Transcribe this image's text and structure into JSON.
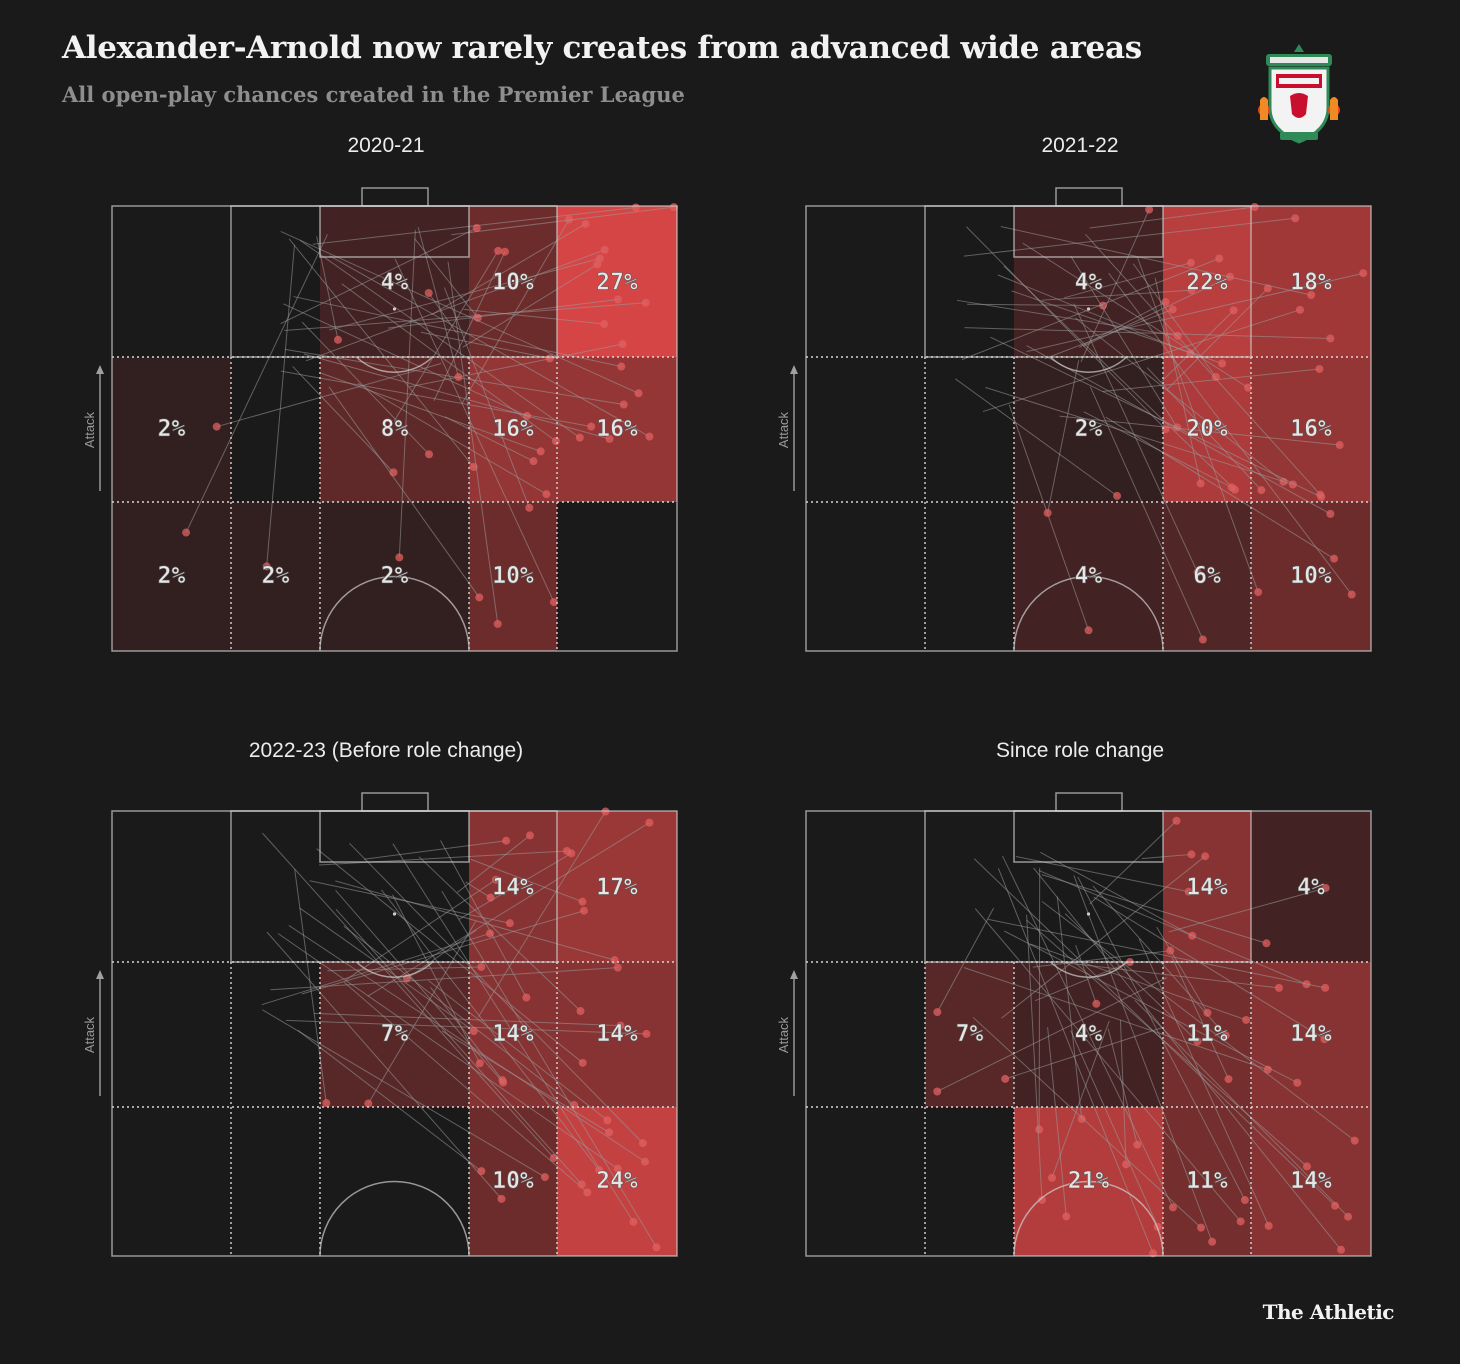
{
  "header": {
    "title": "Alexander-Arnold now rarely creates from advanced wide areas",
    "subtitle": "All open-play chances created in the Premier League"
  },
  "footer": {
    "brand": "The Athletic"
  },
  "logo": {
    "name": "liverpool-crest-icon"
  },
  "colors": {
    "background": "#1a1a1a",
    "zone_max": "#d64545",
    "zone_min": "#1e1a1a",
    "lines": "#cfcfcf",
    "arrows": "#9a9a9a",
    "dots": "#e06060"
  },
  "chart_data": [
    {
      "type": "heatmap",
      "title": "2020-21",
      "axis_label": "Attack",
      "zones": [
        [
          "",
          "",
          "4%",
          "10%",
          "27%"
        ],
        [
          "2%",
          "",
          "8%",
          "16%",
          "16%"
        ],
        [
          "2%",
          "2%",
          "2%",
          "10%",
          ""
        ]
      ],
      "values": [
        [
          0,
          0,
          4,
          10,
          27
        ],
        [
          2,
          0,
          8,
          16,
          16
        ],
        [
          2,
          2,
          2,
          10,
          0
        ]
      ]
    },
    {
      "type": "heatmap",
      "title": "2021-22",
      "axis_label": "Attack",
      "zones": [
        [
          "",
          "",
          "4%",
          "22%",
          "18%"
        ],
        [
          "",
          "",
          "2%",
          "20%",
          "16%"
        ],
        [
          "",
          "",
          "4%",
          "6%",
          "10%"
        ]
      ],
      "values": [
        [
          0,
          0,
          4,
          22,
          18
        ],
        [
          0,
          0,
          2,
          20,
          16
        ],
        [
          0,
          0,
          4,
          6,
          10
        ]
      ]
    },
    {
      "type": "heatmap",
      "title": "2022-23 (Before role change)",
      "axis_label": "Attack",
      "zones": [
        [
          "",
          "",
          "",
          "14%",
          "17%"
        ],
        [
          "",
          "",
          "7%",
          "14%",
          "14%"
        ],
        [
          "",
          "",
          "",
          "10%",
          "24%"
        ]
      ],
      "values": [
        [
          0,
          0,
          0,
          14,
          17
        ],
        [
          0,
          0,
          7,
          14,
          14
        ],
        [
          0,
          0,
          0,
          10,
          24
        ]
      ]
    },
    {
      "type": "heatmap",
      "title": "Since role change",
      "axis_label": "Attack",
      "zones": [
        [
          "",
          "",
          "",
          "14%",
          "4%"
        ],
        [
          "",
          "7%",
          "4%",
          "11%",
          "14%"
        ],
        [
          "",
          "",
          "21%",
          "11%",
          "14%"
        ]
      ],
      "values": [
        [
          0,
          0,
          0,
          14,
          4
        ],
        [
          0,
          7,
          4,
          11,
          14
        ],
        [
          0,
          0,
          21,
          11,
          14
        ]
      ]
    }
  ]
}
